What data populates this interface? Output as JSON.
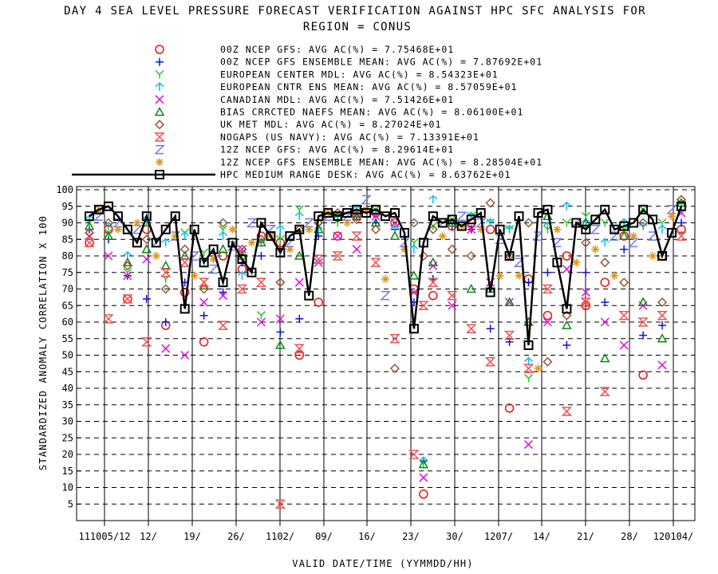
{
  "chart_data": {
    "type": "scatter",
    "title": "DAY 4 SEA LEVEL PRESSURE FORECAST VERIFICATION AGAINST HPC SFC ANALYSIS FOR",
    "subtitle": "REGION = CONUS",
    "xlabel": "VALID DATE/TIME (YYMMDD/HH)",
    "ylabel": "STANDARDIZED ANOMALY CORRELATION X 100",
    "ylim": [
      0,
      100
    ],
    "yticks": [
      5,
      10,
      15,
      20,
      25,
      30,
      35,
      40,
      45,
      50,
      55,
      60,
      65,
      70,
      75,
      80,
      85,
      90,
      95,
      100
    ],
    "xlim": [
      0,
      62
    ],
    "xticks": [
      {
        "x": 0,
        "label": "111005/12"
      },
      {
        "x": 4,
        "label": "12/"
      },
      {
        "x": 9,
        "label": "19/"
      },
      {
        "x": 16,
        "label": "26/"
      },
      {
        "x": 22,
        "label": "1102/"
      },
      {
        "x": 28,
        "label": "09/"
      },
      {
        "x": 35,
        "label": "16/"
      },
      {
        "x": 41,
        "label": "23/"
      },
      {
        "x": 47,
        "label": "30/"
      },
      {
        "x": 53,
        "label": "1207/"
      },
      {
        "x": 58,
        "label": "14/"
      },
      {
        "x": 60,
        "label": "21/"
      },
      {
        "x": 61,
        "label": "28/"
      },
      {
        "x": 62,
        "label": "120104/"
      }
    ],
    "grid": true,
    "legend": "top",
    "series": [
      {
        "name": "00Z NCEP GFS",
        "avg_label": "AVG AC(%) =",
        "avg": "7.75468E+01",
        "color": "#ee1111",
        "marker": "circle",
        "x": [
          0,
          2,
          4,
          6,
          8,
          10,
          12,
          14,
          16,
          18,
          20,
          22,
          24,
          26,
          28,
          30,
          32,
          34,
          35,
          36,
          38,
          40,
          42,
          44,
          46,
          48,
          50,
          52,
          54,
          56,
          58,
          60,
          62
        ],
        "values": [
          84,
          88,
          67,
          88,
          59,
          69,
          54,
          80,
          76,
          86,
          84,
          50,
          66,
          86,
          92,
          93,
          90,
          70,
          8,
          68,
          89,
          90,
          88,
          34,
          73,
          62,
          80,
          65,
          72,
          86,
          44,
          80,
          88
        ]
      },
      {
        "name": "00Z NCEP GFS ENSEMBLE MEAN",
        "avg_label": "AVG AC(%) =",
        "avg": "7.87692E+01",
        "color": "#1111dd",
        "marker": "plus",
        "x": [
          0,
          2,
          4,
          6,
          8,
          10,
          12,
          14,
          16,
          18,
          20,
          22,
          24,
          26,
          28,
          30,
          32,
          34,
          35,
          36,
          38,
          40,
          42,
          44,
          46,
          48,
          50,
          52,
          54,
          56,
          58,
          60,
          62
        ],
        "values": [
          88,
          85,
          74,
          67,
          60,
          72,
          62,
          69,
          78,
          80,
          57,
          61,
          86,
          91,
          92,
          90,
          88,
          66,
          18,
          73,
          89,
          88,
          58,
          54,
          72,
          75,
          53,
          75,
          66,
          82,
          56,
          59,
          90
        ]
      },
      {
        "name": "EUROPEAN CENTER MDL",
        "avg_label": "AVG AC(%) =",
        "avg": "8.54323E+01",
        "color": "#22cc22",
        "marker": "y",
        "x": [
          0,
          2,
          4,
          6,
          8,
          10,
          12,
          14,
          16,
          18,
          20,
          22,
          24,
          26,
          28,
          30,
          32,
          34,
          35,
          36,
          38,
          40,
          42,
          44,
          46,
          48,
          50,
          52,
          54,
          56,
          58,
          60,
          62
        ],
        "values": [
          90,
          87,
          75,
          90,
          73,
          87,
          81,
          88,
          81,
          62,
          85,
          94,
          89,
          90,
          93,
          94,
          90,
          84,
          17,
          89,
          91,
          92,
          90,
          88,
          43,
          88,
          90,
          92,
          90,
          88,
          94,
          90,
          96
        ]
      },
      {
        "name": "EUROPEAN CNTR ENS MEAN",
        "avg_label": "AVG AC(%) =",
        "avg": "8.57059E+01",
        "color": "#11bbee",
        "marker": "arrow",
        "x": [
          0,
          2,
          4,
          6,
          8,
          10,
          12,
          14,
          16,
          18,
          20,
          22,
          24,
          26,
          28,
          30,
          32,
          34,
          35,
          36,
          38,
          40,
          42,
          44,
          46,
          48,
          50,
          52,
          54,
          56,
          58,
          60,
          62
        ],
        "values": [
          91,
          89,
          80,
          91,
          84,
          86,
          78,
          86,
          74,
          84,
          88,
          92,
          88,
          92,
          94,
          93,
          88,
          82,
          18,
          97,
          90,
          92,
          90,
          88,
          48,
          89,
          95,
          90,
          84,
          90,
          89,
          88,
          95
        ]
      },
      {
        "name": "CANADIAN MDL",
        "avg_label": "AVG AC(%) =",
        "avg": "7.51426E+01",
        "color": "#dd11dd",
        "marker": "x",
        "x": [
          0,
          2,
          4,
          6,
          8,
          10,
          12,
          14,
          16,
          18,
          20,
          22,
          24,
          26,
          28,
          30,
          32,
          34,
          35,
          36,
          38,
          40,
          42,
          44,
          46,
          48,
          50,
          52,
          54,
          56,
          58,
          60,
          62
        ],
        "values": [
          86,
          80,
          74,
          79,
          52,
          50,
          66,
          68,
          82,
          60,
          61,
          72,
          78,
          86,
          82,
          92,
          90,
          69,
          13,
          77,
          65,
          88,
          72,
          66,
          23,
          60,
          76,
          69,
          60,
          53,
          65,
          47,
          93
        ]
      },
      {
        "name": "BIAS CRRCTED NAEFS MEAN",
        "avg_label": "AVG AC(%) =",
        "avg": "8.06100E+01",
        "color": "#118811",
        "marker": "triangle",
        "x": [
          0,
          2,
          4,
          6,
          8,
          10,
          12,
          14,
          16,
          18,
          20,
          22,
          24,
          26,
          28,
          30,
          32,
          34,
          35,
          36,
          38,
          40,
          42,
          44,
          46,
          48,
          50,
          52,
          54,
          56,
          58,
          60,
          62
        ],
        "values": [
          89,
          86,
          78,
          82,
          77,
          80,
          71,
          82,
          80,
          84,
          53,
          80,
          88,
          92,
          92,
          90,
          86,
          74,
          17,
          78,
          90,
          70,
          70,
          66,
          60,
          92,
          59,
          90,
          49,
          86,
          66,
          55,
          96
        ]
      },
      {
        "name": "UK MET MDL",
        "avg_label": "AVG AC(%) =",
        "avg": "8.27024E+01",
        "color": "#995533",
        "marker": "diamond",
        "x": [
          0,
          2,
          4,
          6,
          8,
          10,
          12,
          14,
          16,
          18,
          20,
          22,
          24,
          26,
          28,
          30,
          32,
          34,
          35,
          36,
          38,
          40,
          42,
          44,
          46,
          48,
          50,
          52,
          54,
          56,
          58,
          60,
          62
        ],
        "values": [
          87,
          90,
          77,
          85,
          70,
          82,
          70,
          90,
          82,
          85,
          72,
          88,
          90,
          93,
          91,
          88,
          46,
          90,
          80,
          88,
          82,
          80,
          96,
          80,
          90,
          48,
          62,
          84,
          78,
          72,
          90,
          66,
          97
        ]
      },
      {
        "name": "NOGAPS (US NAVY)",
        "avg_label": "AVG AC(%) =",
        "avg": "7.13391E+01",
        "color": "#ee5555",
        "marker": "hourglass",
        "x": [
          0,
          2,
          4,
          6,
          8,
          10,
          12,
          14,
          16,
          18,
          20,
          22,
          24,
          26,
          28,
          30,
          32,
          34,
          35,
          36,
          38,
          40,
          42,
          44,
          46,
          48,
          50,
          52,
          54,
          56,
          58,
          60,
          62
        ],
        "values": [
          84,
          61,
          67,
          54,
          75,
          78,
          72,
          59,
          70,
          72,
          5,
          52,
          79,
          80,
          86,
          78,
          55,
          20,
          65,
          72,
          68,
          58,
          48,
          56,
          46,
          70,
          33,
          66,
          39,
          62,
          60,
          62,
          86
        ]
      },
      {
        "name": "12Z NCEP GFS",
        "avg_label": "AVG AC(%) =",
        "avg": "8.29614E+01",
        "color": "#7777ee",
        "marker": "z",
        "x": [
          1,
          3,
          5,
          7,
          9,
          11,
          13,
          15,
          17,
          19,
          21,
          23,
          25,
          27,
          29,
          31,
          33,
          37,
          39,
          41,
          43,
          45,
          47,
          49,
          51,
          53,
          55,
          57,
          59,
          61
        ],
        "values": [
          92,
          90,
          88,
          84,
          86,
          80,
          76,
          83,
          90,
          88,
          84,
          90,
          92,
          92,
          97,
          68,
          84,
          90,
          92,
          90,
          85,
          78,
          86,
          84,
          90,
          88,
          86,
          84,
          86,
          94
        ]
      },
      {
        "name": "12Z NCEP GFS ENSEMBLE MEAN",
        "avg_label": "AVG AC(%) =",
        "avg": "8.28504E+01",
        "color": "#dd9922",
        "marker": "star",
        "x": [
          1,
          3,
          5,
          7,
          9,
          11,
          13,
          15,
          17,
          19,
          21,
          23,
          25,
          27,
          29,
          31,
          33,
          37,
          39,
          41,
          43,
          45,
          47,
          49,
          51,
          53,
          55,
          57,
          59,
          61
        ],
        "values": [
          94,
          88,
          90,
          80,
          86,
          74,
          79,
          88,
          84,
          86,
          82,
          88,
          93,
          90,
          94,
          73,
          82,
          86,
          89,
          88,
          74,
          74,
          46,
          88,
          78,
          82,
          74,
          86,
          80,
          92
        ]
      },
      {
        "name": "HPC MEDIUM RANGE DESK",
        "avg_label": "AVG AC(%) =",
        "avg": "8.63762E+01",
        "color": "#000000",
        "marker": "square",
        "x": [
          0,
          1,
          2,
          3,
          4,
          5,
          6,
          7,
          8,
          9,
          10,
          11,
          12,
          13,
          14,
          15,
          16,
          17,
          18,
          19,
          20,
          21,
          22,
          23,
          24,
          25,
          26,
          27,
          28,
          29,
          30,
          31,
          32,
          33,
          34,
          35,
          36,
          37,
          38,
          39,
          40,
          41,
          42,
          43,
          44,
          45,
          46,
          47,
          48,
          49,
          50,
          51,
          52,
          53,
          54,
          55,
          56,
          57,
          58,
          59,
          60,
          61,
          62
        ],
        "values": [
          92,
          94,
          95,
          92,
          88,
          84,
          92,
          84,
          88,
          92,
          64,
          88,
          78,
          82,
          72,
          84,
          79,
          75,
          90,
          86,
          81,
          86,
          88,
          68,
          92,
          93,
          92,
          93,
          94,
          93,
          94,
          92,
          93,
          87,
          58,
          84,
          92,
          90,
          91,
          89,
          91,
          93,
          69,
          88,
          80,
          92,
          53,
          93,
          94,
          78,
          64,
          90,
          88,
          91,
          94,
          88,
          89,
          90,
          94,
          91,
          80,
          87,
          95
        ]
      }
    ]
  }
}
